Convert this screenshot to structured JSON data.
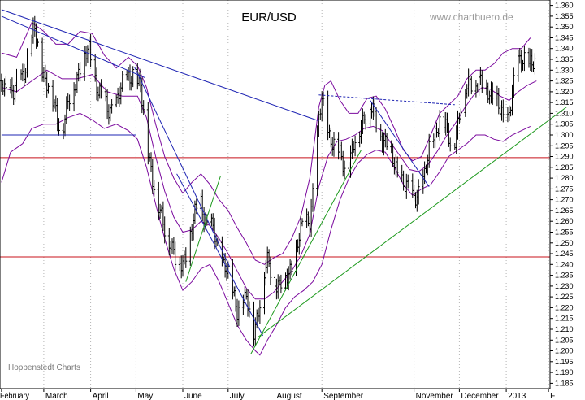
{
  "chart_data": {
    "type": "candlestick",
    "title": "EUR/USD",
    "watermark": "www.chartbuero.de",
    "source": "Hoppenstedt Charts",
    "ylim": [
      1.1825,
      1.3625
    ],
    "y_ticks": [
      "1.360",
      "1.355",
      "1.350",
      "1.345",
      "1.340",
      "1.335",
      "1.330",
      "1.325",
      "1.320",
      "1.315",
      "1.310",
      "1.305",
      "1.300",
      "1.295",
      "1.290",
      "1.285",
      "1.280",
      "1.275",
      "1.270",
      "1.265",
      "1.260",
      "1.255",
      "1.250",
      "1.245",
      "1.240",
      "1.235",
      "1.230",
      "1.225",
      "1.220",
      "1.215",
      "1.210",
      "1.205",
      "1.200",
      "1.195",
      "1.190",
      "1.185"
    ],
    "x_months": [
      "February",
      "March",
      "April",
      "May",
      "June",
      "July",
      "August",
      "September",
      "November",
      "December",
      "2013",
      "F"
    ],
    "x_month_days": [
      -20,
      8,
      39,
      69,
      100,
      130,
      161,
      192,
      253,
      283,
      314,
      342
    ],
    "x_day_range": [
      -21,
      343
    ],
    "grid": true,
    "colors": {
      "price": "#000000",
      "bands": "#7b0a9e",
      "trend_blue": "#1e24b3",
      "trend_green": "#1e9a1e",
      "support_red": "#c8131b",
      "grid": "#b4b4b4"
    },
    "price_path": [
      [
        -20,
        1.325
      ],
      [
        -12,
        1.318
      ],
      [
        -4,
        1.333
      ],
      [
        2,
        1.348
      ],
      [
        8,
        1.328
      ],
      [
        14,
        1.315
      ],
      [
        20,
        1.303
      ],
      [
        26,
        1.318
      ],
      [
        32,
        1.333
      ],
      [
        38,
        1.338
      ],
      [
        44,
        1.322
      ],
      [
        50,
        1.31
      ],
      [
        56,
        1.316
      ],
      [
        62,
        1.325
      ],
      [
        67,
        1.33
      ],
      [
        72,
        1.32
      ],
      [
        76,
        1.3
      ],
      [
        80,
        1.28
      ],
      [
        84,
        1.265
      ],
      [
        88,
        1.258
      ],
      [
        92,
        1.25
      ],
      [
        96,
        1.238
      ],
      [
        100,
        1.242
      ],
      [
        104,
        1.25
      ],
      [
        108,
        1.262
      ],
      [
        112,
        1.27
      ],
      [
        116,
        1.258
      ],
      [
        120,
        1.255
      ],
      [
        124,
        1.245
      ],
      [
        128,
        1.24
      ],
      [
        132,
        1.228
      ],
      [
        136,
        1.22
      ],
      [
        140,
        1.225
      ],
      [
        144,
        1.218
      ],
      [
        147,
        1.21
      ],
      [
        150,
        1.22
      ],
      [
        153,
        1.232
      ],
      [
        156,
        1.24
      ],
      [
        160,
        1.235
      ],
      [
        164,
        1.23
      ],
      [
        168,
        1.232
      ],
      [
        172,
        1.24
      ],
      [
        176,
        1.25
      ],
      [
        180,
        1.258
      ],
      [
        184,
        1.262
      ],
      [
        187,
        1.28
      ],
      [
        190,
        1.305
      ],
      [
        192,
        1.316
      ],
      [
        196,
        1.303
      ],
      [
        200,
        1.295
      ],
      [
        204,
        1.29
      ],
      [
        208,
        1.285
      ],
      [
        212,
        1.292
      ],
      [
        216,
        1.3
      ],
      [
        220,
        1.31
      ],
      [
        224,
        1.313
      ],
      [
        228,
        1.305
      ],
      [
        232,
        1.3
      ],
      [
        236,
        1.295
      ],
      [
        240,
        1.285
      ],
      [
        244,
        1.282
      ],
      [
        248,
        1.275
      ],
      [
        252,
        1.27
      ],
      [
        256,
        1.275
      ],
      [
        260,
        1.28
      ],
      [
        263,
        1.292
      ],
      [
        266,
        1.3
      ],
      [
        270,
        1.308
      ],
      [
        274,
        1.302
      ],
      [
        278,
        1.295
      ],
      [
        282,
        1.305
      ],
      [
        286,
        1.318
      ],
      [
        290,
        1.327
      ],
      [
        294,
        1.324
      ],
      [
        298,
        1.322
      ],
      [
        302,
        1.322
      ],
      [
        306,
        1.318
      ],
      [
        310,
        1.31
      ],
      [
        314,
        1.305
      ],
      [
        318,
        1.32
      ],
      [
        322,
        1.332
      ],
      [
        326,
        1.337
      ],
      [
        330,
        1.333
      ],
      [
        334,
        1.33
      ]
    ],
    "bollinger_upper": [
      [
        -20,
        1.338
      ],
      [
        -10,
        1.336
      ],
      [
        0,
        1.352
      ],
      [
        8,
        1.348
      ],
      [
        16,
        1.342
      ],
      [
        24,
        1.342
      ],
      [
        32,
        1.348
      ],
      [
        40,
        1.347
      ],
      [
        48,
        1.337
      ],
      [
        56,
        1.331
      ],
      [
        64,
        1.336
      ],
      [
        70,
        1.332
      ],
      [
        76,
        1.322
      ],
      [
        82,
        1.305
      ],
      [
        88,
        1.29
      ],
      [
        94,
        1.28
      ],
      [
        100,
        1.273
      ],
      [
        106,
        1.278
      ],
      [
        112,
        1.282
      ],
      [
        118,
        1.277
      ],
      [
        124,
        1.27
      ],
      [
        130,
        1.265
      ],
      [
        136,
        1.257
      ],
      [
        142,
        1.25
      ],
      [
        148,
        1.242
      ],
      [
        154,
        1.24
      ],
      [
        160,
        1.243
      ],
      [
        166,
        1.245
      ],
      [
        172,
        1.252
      ],
      [
        178,
        1.262
      ],
      [
        184,
        1.28
      ],
      [
        190,
        1.313
      ],
      [
        194,
        1.323
      ],
      [
        198,
        1.325
      ],
      [
        204,
        1.316
      ],
      [
        210,
        1.31
      ],
      [
        216,
        1.31
      ],
      [
        222,
        1.317
      ],
      [
        228,
        1.318
      ],
      [
        234,
        1.312
      ],
      [
        240,
        1.303
      ],
      [
        246,
        1.293
      ],
      [
        252,
        1.288
      ],
      [
        258,
        1.29
      ],
      [
        264,
        1.3
      ],
      [
        270,
        1.31
      ],
      [
        276,
        1.314
      ],
      [
        282,
        1.318
      ],
      [
        288,
        1.326
      ],
      [
        294,
        1.33
      ],
      [
        300,
        1.33
      ],
      [
        306,
        1.333
      ],
      [
        312,
        1.338
      ],
      [
        318,
        1.34
      ],
      [
        324,
        1.34
      ],
      [
        330,
        1.345
      ]
    ],
    "bollinger_middle": [
      [
        -20,
        1.322
      ],
      [
        -10,
        1.32
      ],
      [
        0,
        1.325
      ],
      [
        10,
        1.33
      ],
      [
        20,
        1.326
      ],
      [
        30,
        1.326
      ],
      [
        40,
        1.328
      ],
      [
        50,
        1.32
      ],
      [
        60,
        1.318
      ],
      [
        70,
        1.318
      ],
      [
        76,
        1.308
      ],
      [
        82,
        1.29
      ],
      [
        88,
        1.274
      ],
      [
        94,
        1.262
      ],
      [
        100,
        1.255
      ],
      [
        106,
        1.256
      ],
      [
        112,
        1.26
      ],
      [
        118,
        1.258
      ],
      [
        124,
        1.252
      ],
      [
        130,
        1.245
      ],
      [
        136,
        1.237
      ],
      [
        142,
        1.229
      ],
      [
        148,
        1.224
      ],
      [
        154,
        1.224
      ],
      [
        160,
        1.227
      ],
      [
        166,
        1.232
      ],
      [
        172,
        1.237
      ],
      [
        178,
        1.244
      ],
      [
        184,
        1.254
      ],
      [
        190,
        1.276
      ],
      [
        196,
        1.29
      ],
      [
        202,
        1.297
      ],
      [
        208,
        1.298
      ],
      [
        214,
        1.3
      ],
      [
        220,
        1.303
      ],
      [
        226,
        1.304
      ],
      [
        232,
        1.302
      ],
      [
        238,
        1.296
      ],
      [
        244,
        1.29
      ],
      [
        250,
        1.284
      ],
      [
        256,
        1.283
      ],
      [
        262,
        1.286
      ],
      [
        268,
        1.292
      ],
      [
        274,
        1.299
      ],
      [
        280,
        1.305
      ],
      [
        286,
        1.312
      ],
      [
        292,
        1.318
      ],
      [
        298,
        1.322
      ],
      [
        304,
        1.321
      ],
      [
        310,
        1.318
      ],
      [
        316,
        1.316
      ],
      [
        322,
        1.32
      ],
      [
        328,
        1.323
      ],
      [
        334,
        1.325
      ]
    ],
    "bollinger_lower": [
      [
        -20,
        1.278
      ],
      [
        -14,
        1.292
      ],
      [
        -6,
        1.296
      ],
      [
        0,
        1.303
      ],
      [
        8,
        1.305
      ],
      [
        16,
        1.305
      ],
      [
        24,
        1.308
      ],
      [
        32,
        1.31
      ],
      [
        40,
        1.307
      ],
      [
        48,
        1.303
      ],
      [
        56,
        1.305
      ],
      [
        64,
        1.302
      ],
      [
        70,
        1.298
      ],
      [
        76,
        1.285
      ],
      [
        82,
        1.268
      ],
      [
        88,
        1.252
      ],
      [
        94,
        1.238
      ],
      [
        100,
        1.228
      ],
      [
        106,
        1.232
      ],
      [
        112,
        1.238
      ],
      [
        118,
        1.24
      ],
      [
        124,
        1.232
      ],
      [
        130,
        1.222
      ],
      [
        136,
        1.212
      ],
      [
        142,
        1.205
      ],
      [
        148,
        1.2
      ],
      [
        151,
        1.198
      ],
      [
        156,
        1.205
      ],
      [
        162,
        1.212
      ],
      [
        168,
        1.22
      ],
      [
        174,
        1.225
      ],
      [
        180,
        1.228
      ],
      [
        186,
        1.232
      ],
      [
        192,
        1.24
      ],
      [
        198,
        1.256
      ],
      [
        204,
        1.27
      ],
      [
        210,
        1.28
      ],
      [
        216,
        1.287
      ],
      [
        222,
        1.291
      ],
      [
        228,
        1.293
      ],
      [
        234,
        1.292
      ],
      [
        240,
        1.285
      ],
      [
        246,
        1.277
      ],
      [
        252,
        1.272
      ],
      [
        258,
        1.275
      ],
      [
        264,
        1.277
      ],
      [
        270,
        1.283
      ],
      [
        276,
        1.29
      ],
      [
        282,
        1.293
      ],
      [
        288,
        1.296
      ],
      [
        294,
        1.3
      ],
      [
        300,
        1.3
      ],
      [
        306,
        1.298
      ],
      [
        312,
        1.297
      ],
      [
        318,
        1.3
      ],
      [
        324,
        1.302
      ],
      [
        330,
        1.304
      ]
    ],
    "support_lines": [
      1.2895,
      1.2435
    ],
    "blue_lines": [
      [
        [
          -20,
          1.3
        ],
        [
          69,
          1.3
        ]
      ],
      [
        [
          -20,
          1.358
        ],
        [
          190,
          1.3065
        ]
      ],
      [
        [
          -20,
          1.355
        ],
        [
          75,
          1.3265
        ]
      ],
      [
        [
          68,
          1.3315
        ],
        [
          131,
          1.239
        ]
      ],
      [
        [
          96,
          1.282
        ],
        [
          153,
          1.207
        ]
      ],
      [
        [
          224,
          1.316
        ],
        [
          263,
          1.276
        ]
      ]
    ],
    "blue_dashed": [
      [
        [
          190,
          1.3185
        ],
        [
          280,
          1.314
        ]
      ]
    ],
    "green_lines": [
      [
        [
          102,
          1.232
        ],
        [
          125,
          1.281
        ]
      ],
      [
        [
          145,
          1.1985
        ],
        [
          218,
          1.293
        ]
      ],
      [
        [
          150,
          1.2065
        ],
        [
          354,
          1.313
        ]
      ]
    ]
  }
}
